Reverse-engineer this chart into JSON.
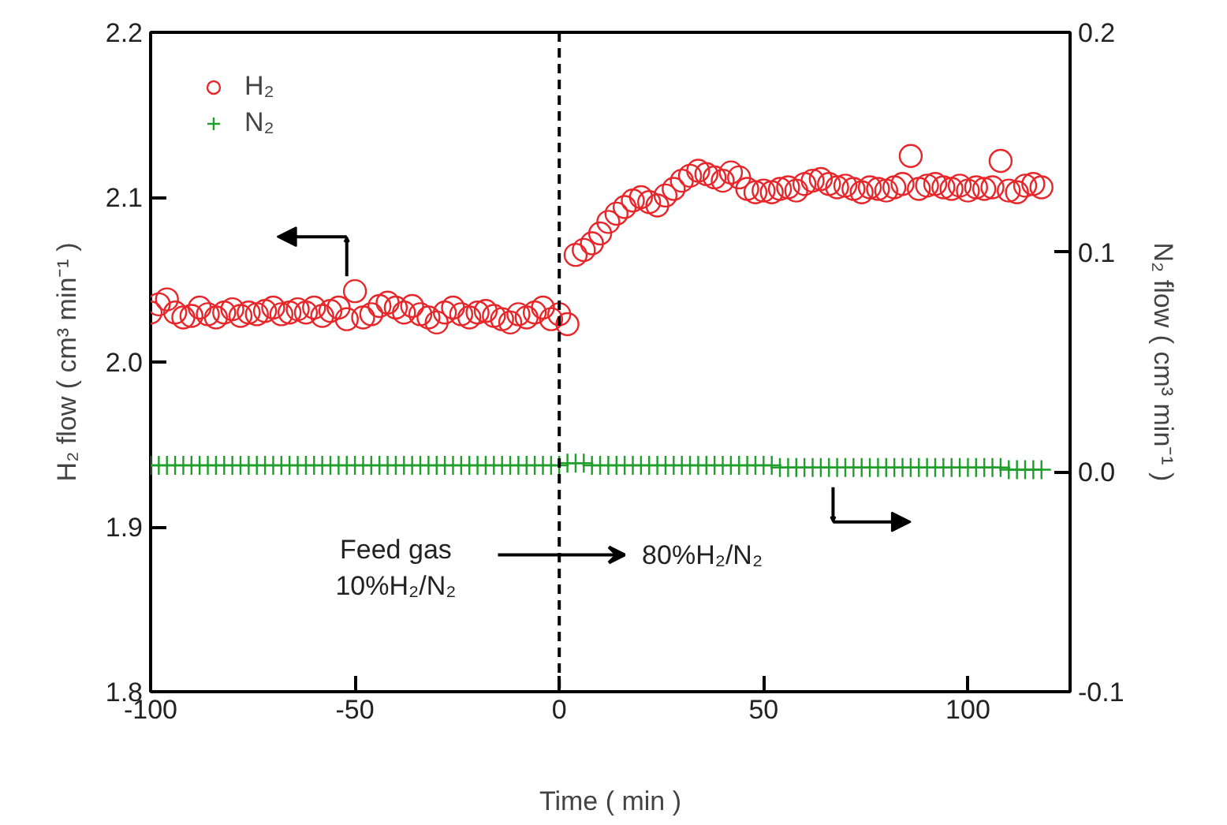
{
  "chart_data": {
    "type": "scatter",
    "xlabel": "Time ( min )",
    "ylabel": "H₂ flow ( cm³ min⁻¹ )",
    "y2label": "N₂ flow ( cm³ min⁻¹ )",
    "x": [
      -100,
      -98,
      -96,
      -94,
      -92,
      -90,
      -88,
      -86,
      -84,
      -82,
      -80,
      -78,
      -76,
      -74,
      -72,
      -70,
      -68,
      -66,
      -64,
      -62,
      -60,
      -58,
      -56,
      -54,
      -52,
      -50,
      -48,
      -46,
      -44,
      -42,
      -40,
      -38,
      -36,
      -34,
      -32,
      -30,
      -28,
      -26,
      -24,
      -22,
      -20,
      -18,
      -16,
      -14,
      -12,
      -10,
      -8,
      -6,
      -4,
      -2,
      0,
      2,
      4,
      6,
      8,
      10,
      12,
      14,
      16,
      18,
      20,
      22,
      24,
      26,
      28,
      30,
      32,
      34,
      36,
      38,
      40,
      42,
      44,
      46,
      48,
      50,
      52,
      54,
      56,
      58,
      60,
      62,
      64,
      66,
      68,
      70,
      72,
      74,
      76,
      78,
      80,
      82,
      84,
      86,
      88,
      90,
      92,
      94,
      96,
      98,
      100,
      102,
      104,
      106,
      108,
      110,
      112,
      114,
      116,
      118
    ],
    "series": [
      {
        "name": "H₂",
        "color": "#e8262a",
        "marker": "circle",
        "values": [
          2.03,
          2.035,
          2.038,
          2.03,
          2.027,
          2.028,
          2.033,
          2.029,
          2.027,
          2.03,
          2.032,
          2.028,
          2.03,
          2.029,
          2.031,
          2.033,
          2.029,
          2.03,
          2.032,
          2.03,
          2.033,
          2.028,
          2.031,
          2.033,
          2.026,
          2.043,
          2.027,
          2.029,
          2.034,
          2.036,
          2.033,
          2.03,
          2.034,
          2.029,
          2.027,
          2.024,
          2.03,
          2.033,
          2.029,
          2.027,
          2.03,
          2.031,
          2.028,
          2.026,
          2.024,
          2.029,
          2.027,
          2.03,
          2.033,
          2.026,
          2.029,
          2.023,
          2.065,
          2.068,
          2.072,
          2.078,
          2.085,
          2.09,
          2.094,
          2.098,
          2.1,
          2.097,
          2.095,
          2.101,
          2.105,
          2.11,
          2.113,
          2.116,
          2.114,
          2.112,
          2.11,
          2.115,
          2.112,
          2.105,
          2.103,
          2.104,
          2.103,
          2.105,
          2.106,
          2.104,
          2.108,
          2.11,
          2.111,
          2.108,
          2.106,
          2.107,
          2.105,
          2.103,
          2.106,
          2.105,
          2.104,
          2.106,
          2.108,
          2.125,
          2.105,
          2.107,
          2.108,
          2.106,
          2.105,
          2.107,
          2.104,
          2.106,
          2.105,
          2.106,
          2.122,
          2.104,
          2.103,
          2.107,
          2.108,
          2.106
        ]
      },
      {
        "name": "N₂",
        "color": "#1f9e2a",
        "marker": "cross",
        "axis": "y2",
        "values": [
          0.003,
          0.003,
          0.003,
          0.003,
          0.003,
          0.003,
          0.003,
          0.003,
          0.003,
          0.003,
          0.003,
          0.003,
          0.003,
          0.003,
          0.003,
          0.003,
          0.003,
          0.003,
          0.003,
          0.003,
          0.003,
          0.003,
          0.003,
          0.003,
          0.003,
          0.003,
          0.003,
          0.003,
          0.003,
          0.003,
          0.003,
          0.003,
          0.003,
          0.003,
          0.003,
          0.003,
          0.003,
          0.003,
          0.003,
          0.003,
          0.003,
          0.003,
          0.003,
          0.003,
          0.003,
          0.003,
          0.003,
          0.003,
          0.003,
          0.003,
          0.003,
          0.004,
          0.004,
          0.004,
          0.003,
          0.003,
          0.003,
          0.003,
          0.003,
          0.003,
          0.003,
          0.003,
          0.003,
          0.003,
          0.003,
          0.003,
          0.003,
          0.003,
          0.003,
          0.003,
          0.003,
          0.003,
          0.003,
          0.003,
          0.003,
          0.003,
          0.003,
          0.002,
          0.002,
          0.002,
          0.002,
          0.002,
          0.002,
          0.002,
          0.002,
          0.002,
          0.002,
          0.002,
          0.002,
          0.002,
          0.002,
          0.002,
          0.002,
          0.002,
          0.002,
          0.002,
          0.002,
          0.002,
          0.002,
          0.002,
          0.002,
          0.002,
          0.002,
          0.002,
          0.002,
          0.001,
          0.001,
          0.001,
          0.001,
          0.001
        ]
      }
    ],
    "xlim": [
      -100,
      125
    ],
    "xticks": [
      -100,
      -50,
      0,
      50,
      100
    ],
    "ylim": [
      1.8,
      2.2
    ],
    "yticks": [
      1.8,
      1.9,
      {
        "value": 2.0,
        "label": "2.0"
      },
      2.1,
      2.2
    ],
    "y2lim": [
      -0.1,
      0.2
    ],
    "y2ticks": [
      -0.1,
      {
        "value": 0.0,
        "label": "0.0"
      },
      0.1,
      0.2
    ],
    "ref_lines": [
      {
        "axis": "x",
        "value": 0,
        "color": "#000000",
        "line_style": "dashed"
      }
    ],
    "annotations": [
      "Feed gas\n10%H₂/N₂",
      "80%H₂/N₂"
    ],
    "legend": "top left",
    "grid": false
  }
}
